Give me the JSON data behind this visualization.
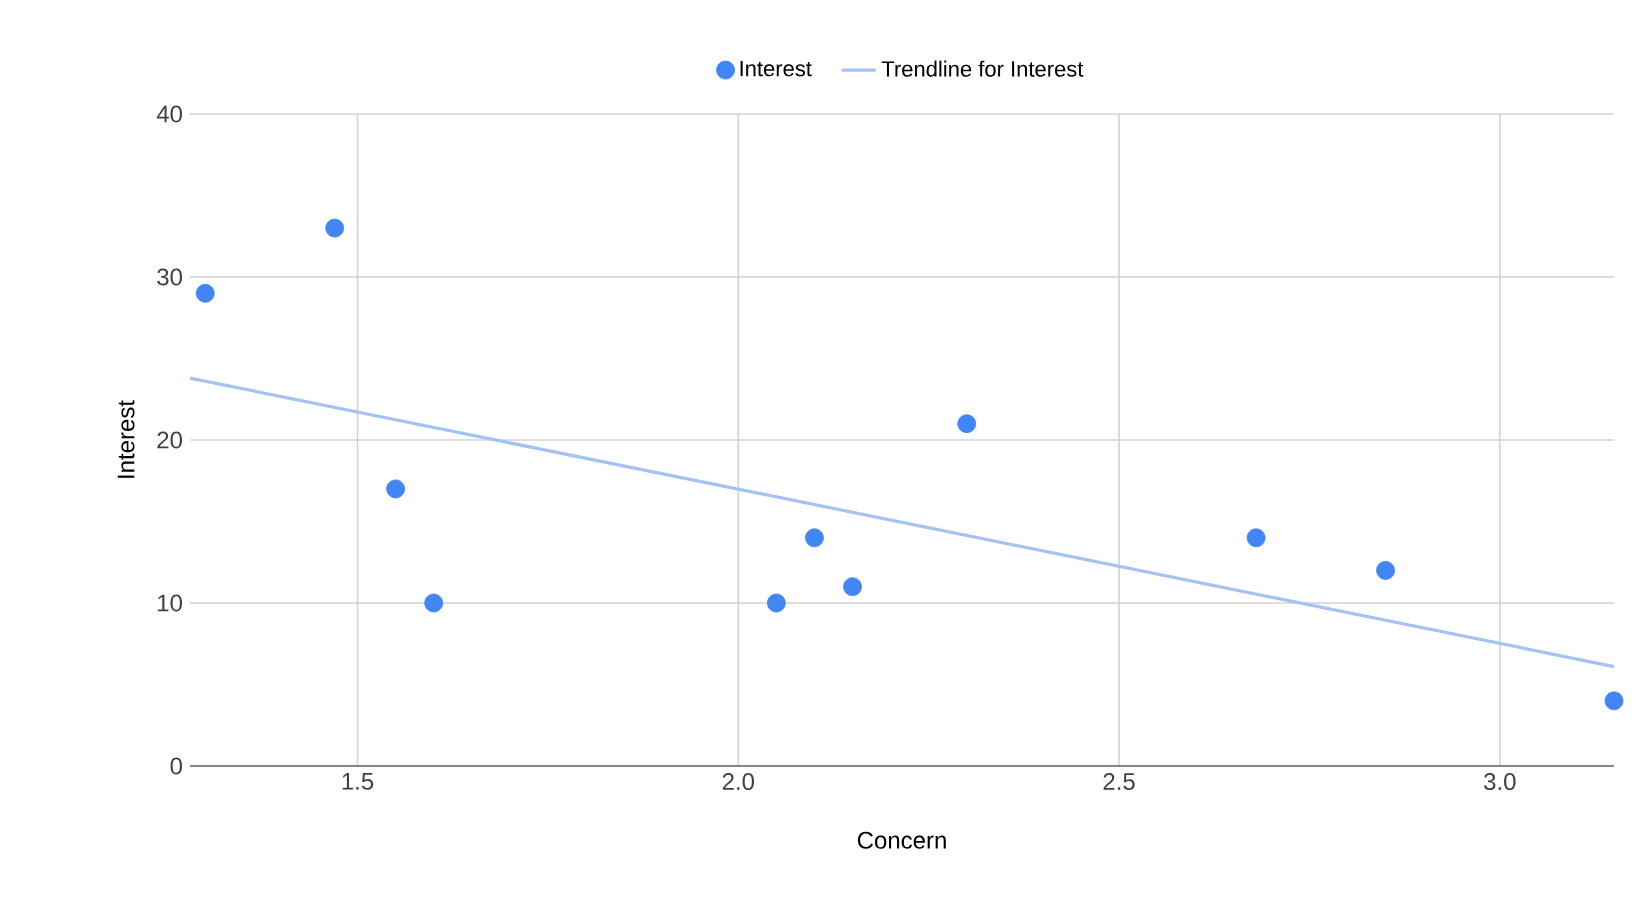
{
  "chart_data": {
    "type": "scatter",
    "xlabel": "Concern",
    "ylabel": "Interest",
    "series": [
      {
        "name": "Interest",
        "color": "#4285f4",
        "marker": "circle",
        "x": [
          1.3,
          1.47,
          1.55,
          1.6,
          2.05,
          2.1,
          2.15,
          2.3,
          2.68,
          2.85,
          3.15
        ],
        "values": [
          29,
          33,
          17,
          10,
          10,
          14,
          11,
          21,
          14,
          12,
          4
        ]
      },
      {
        "name": "Trendline for Interest",
        "type": "line",
        "color": "#a4c2f4",
        "marker": "none",
        "x": [
          1.28,
          3.15
        ],
        "values": [
          23.8,
          6.1
        ]
      }
    ],
    "xlim": [
      1.28,
      3.15
    ],
    "ylim": [
      0,
      40
    ],
    "xticks": [
      1.5,
      {
        "value": 2.0,
        "label": "2.0"
      },
      2.5,
      {
        "value": 3.0,
        "label": "3.0"
      }
    ],
    "yticks": [
      0,
      10,
      20,
      30,
      40
    ],
    "grid": true,
    "legend": "top"
  }
}
